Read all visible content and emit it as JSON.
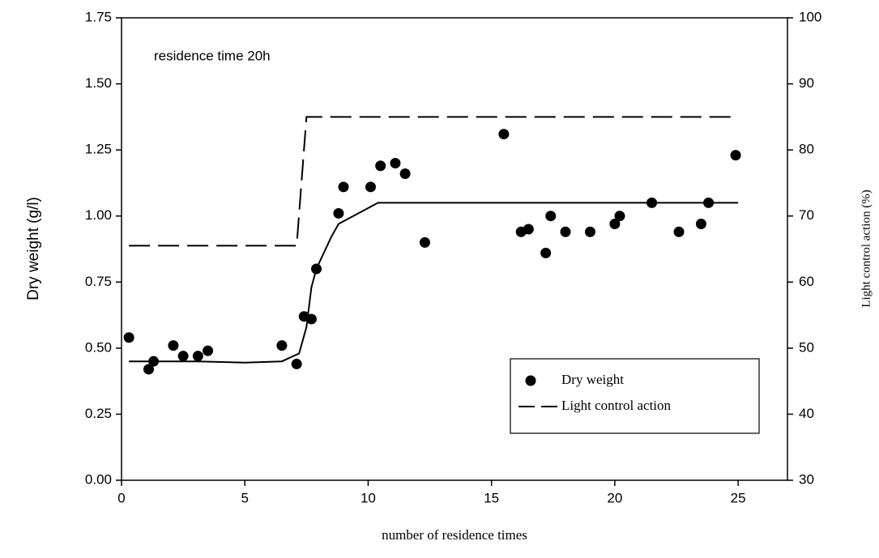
{
  "chart_data": {
    "type": "scatter-line",
    "annotation": "residence time 20h",
    "xlabel": "number of residence times",
    "ylabel": "Dry weight (g/l)",
    "y2label": "Light control action (%)",
    "xlim": [
      0,
      27
    ],
    "xticks": [
      0,
      5,
      10,
      15,
      20,
      25
    ],
    "ylim": [
      0,
      1.75
    ],
    "yticks": [
      {
        "value": 0,
        "label": "0.00"
      },
      0.25,
      {
        "value": 0.5,
        "label": "0.50"
      },
      0.75,
      {
        "value": 1,
        "label": "1.00"
      },
      1.25,
      {
        "value": 1.5,
        "label": "1.50"
      },
      1.75
    ],
    "y2lim": [
      30,
      100
    ],
    "y2ticks": [
      30,
      40,
      50,
      60,
      70,
      80,
      90,
      100
    ],
    "legend": "lower right",
    "series": [
      {
        "name": "Dry weight",
        "kind": "scatter",
        "color": "#000000",
        "x": [
          0.3,
          1.1,
          1.3,
          2.1,
          2.5,
          3.1,
          3.5,
          6.5,
          7.1,
          7.4,
          7.7,
          7.9,
          8.8,
          9.0,
          10.1,
          10.5,
          11.1,
          11.5,
          12.3,
          15.5,
          16.2,
          16.5,
          17.2,
          17.4,
          18.0,
          19.0,
          20.0,
          20.2,
          21.5,
          22.6,
          23.5,
          23.8,
          24.9
        ],
        "values": [
          0.54,
          0.42,
          0.45,
          0.51,
          0.47,
          0.47,
          0.49,
          0.51,
          0.44,
          0.62,
          0.61,
          0.8,
          1.01,
          1.11,
          1.11,
          1.19,
          1.2,
          1.16,
          0.9,
          1.31,
          0.94,
          0.95,
          0.86,
          1.0,
          0.94,
          0.94,
          0.97,
          1.0,
          1.05,
          0.94,
          0.97,
          1.05,
          1.23
        ]
      },
      {
        "kind": "line",
        "color": "#000000",
        "x": [
          0.3,
          3,
          5,
          6.5,
          7.2,
          7.5,
          7.7,
          7.9,
          8.5,
          8.8,
          10.4,
          25
        ],
        "values": [
          0.45,
          0.45,
          0.445,
          0.45,
          0.48,
          0.58,
          0.73,
          0.8,
          0.92,
          0.97,
          1.05,
          1.05
        ]
      },
      {
        "name": "Light control action",
        "kind": "line",
        "dashed": true,
        "axis": "y2",
        "color": "#000000",
        "x": [
          0.3,
          7.1,
          7.5,
          25
        ],
        "values": [
          65.5,
          65.5,
          85,
          85
        ]
      }
    ]
  }
}
